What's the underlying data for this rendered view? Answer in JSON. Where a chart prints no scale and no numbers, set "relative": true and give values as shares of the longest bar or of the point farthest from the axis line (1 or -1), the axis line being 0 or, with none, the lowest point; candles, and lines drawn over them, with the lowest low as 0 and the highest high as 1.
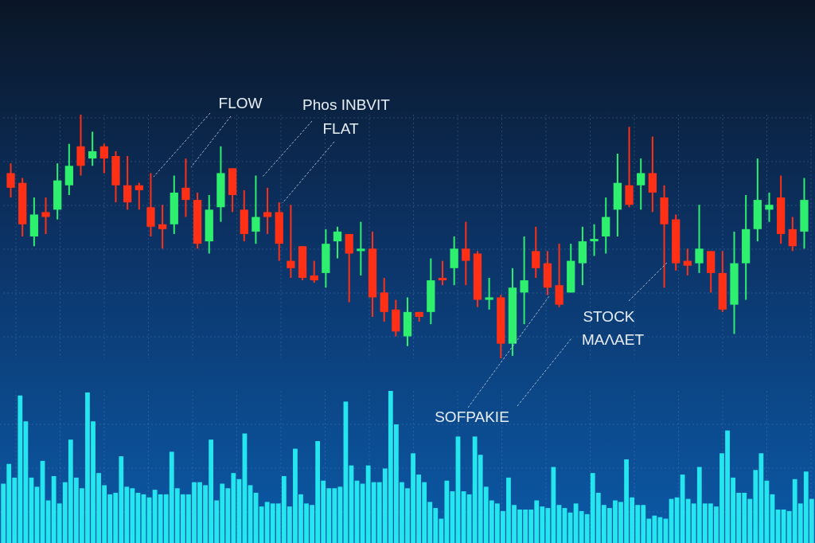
{
  "chart_data": [
    {
      "type": "candlestick",
      "relative": true,
      "grid": true,
      "categories": [
        null,
        null,
        null,
        null,
        null,
        null,
        null,
        null,
        null,
        null,
        null,
        null,
        null,
        null,
        null,
        null,
        null,
        null,
        null,
        null,
        null,
        null,
        null,
        null,
        null,
        null,
        null,
        null,
        null,
        null,
        null,
        null,
        null,
        null,
        null,
        null,
        null,
        null,
        null,
        null,
        null,
        null,
        null,
        null,
        null,
        null,
        null,
        null,
        null,
        null,
        null,
        null,
        null,
        null,
        null,
        null,
        null,
        null,
        null,
        null,
        null,
        null,
        null,
        null,
        null,
        null,
        null,
        null,
        null
      ],
      "ohlc": [
        [
          0.76,
          0.8,
          0.66,
          0.7
        ],
        [
          0.72,
          0.74,
          0.5,
          0.55
        ],
        [
          0.5,
          0.66,
          0.46,
          0.59
        ],
        [
          0.6,
          0.66,
          0.51,
          0.58
        ],
        [
          0.61,
          0.8,
          0.57,
          0.73
        ],
        [
          0.71,
          0.88,
          0.67,
          0.79
        ],
        [
          0.87,
          1.0,
          0.75,
          0.79
        ],
        [
          0.82,
          0.93,
          0.79,
          0.85
        ],
        [
          0.87,
          0.88,
          0.76,
          0.82
        ],
        [
          0.83,
          0.85,
          0.64,
          0.71
        ],
        [
          0.71,
          0.83,
          0.61,
          0.64
        ],
        [
          0.71,
          0.72,
          0.61,
          0.69
        ],
        [
          0.62,
          0.76,
          0.5,
          0.54
        ],
        [
          0.55,
          0.63,
          0.45,
          0.53
        ],
        [
          0.55,
          0.75,
          0.51,
          0.68
        ],
        [
          0.7,
          0.82,
          0.58,
          0.65
        ],
        [
          0.65,
          0.68,
          0.45,
          0.47
        ],
        [
          0.48,
          0.67,
          0.43,
          0.61
        ],
        [
          0.62,
          0.87,
          0.56,
          0.76
        ],
        [
          0.78,
          0.78,
          0.6,
          0.67
        ],
        [
          0.61,
          0.69,
          0.48,
          0.51
        ],
        [
          0.52,
          0.75,
          0.47,
          0.58
        ],
        [
          0.6,
          0.7,
          0.51,
          0.58
        ],
        [
          0.6,
          0.64,
          0.4,
          0.47
        ],
        [
          0.4,
          0.63,
          0.33,
          0.37
        ],
        [
          0.46,
          0.46,
          0.32,
          0.33
        ],
        [
          0.34,
          0.4,
          0.31,
          0.32
        ],
        [
          0.35,
          0.53,
          0.29,
          0.47
        ],
        [
          0.48,
          0.54,
          0.41,
          0.52
        ],
        [
          0.51,
          0.51,
          0.23,
          0.43
        ],
        [
          0.44,
          0.56,
          0.34,
          0.45
        ],
        [
          0.45,
          0.52,
          0.17,
          0.25
        ],
        [
          0.27,
          0.33,
          0.15,
          0.19
        ],
        [
          0.2,
          0.24,
          0.09,
          0.11
        ],
        [
          0.09,
          0.25,
          0.05,
          0.19
        ],
        [
          0.19,
          0.19,
          0.15,
          0.17
        ],
        [
          0.19,
          0.41,
          0.14,
          0.32
        ],
        [
          0.33,
          0.4,
          0.3,
          0.32
        ],
        [
          0.37,
          0.5,
          0.3,
          0.45
        ],
        [
          0.45,
          0.56,
          0.3,
          0.4
        ],
        [
          0.43,
          0.44,
          0.21,
          0.24
        ],
        [
          0.24,
          0.33,
          0.2,
          0.25
        ],
        [
          0.25,
          0.26,
          0.0,
          0.06
        ],
        [
          0.06,
          0.37,
          0.01,
          0.29
        ],
        [
          0.27,
          0.5,
          0.14,
          0.32
        ],
        [
          0.44,
          0.54,
          0.33,
          0.37
        ],
        [
          0.39,
          0.44,
          0.26,
          0.29
        ],
        [
          0.3,
          0.47,
          0.21,
          0.22
        ],
        [
          0.27,
          0.47,
          0.27,
          0.4
        ],
        [
          0.39,
          0.54,
          0.3,
          0.48
        ],
        [
          0.48,
          0.55,
          0.42,
          0.49
        ],
        [
          0.5,
          0.66,
          0.43,
          0.58
        ],
        [
          0.61,
          0.84,
          0.5,
          0.72
        ],
        [
          0.71,
          0.95,
          0.62,
          0.63
        ],
        [
          0.71,
          0.82,
          0.61,
          0.76
        ],
        [
          0.76,
          0.91,
          0.6,
          0.68
        ],
        [
          0.66,
          0.71,
          0.29,
          0.55
        ],
        [
          0.57,
          0.59,
          0.36,
          0.39
        ],
        [
          0.4,
          0.45,
          0.34,
          0.38
        ],
        [
          0.39,
          0.63,
          0.35,
          0.45
        ],
        [
          0.44,
          0.44,
          0.27,
          0.35
        ],
        [
          0.35,
          0.44,
          0.19,
          0.2
        ],
        [
          0.22,
          0.52,
          0.1,
          0.39
        ],
        [
          0.39,
          0.67,
          0.24,
          0.53
        ],
        [
          0.53,
          0.82,
          0.48,
          0.65
        ],
        [
          0.61,
          0.68,
          0.56,
          0.63
        ],
        [
          0.66,
          0.75,
          0.47,
          0.51
        ],
        [
          0.53,
          0.58,
          0.44,
          0.46
        ],
        [
          0.52,
          0.74,
          0.45,
          0.65
        ]
      ],
      "colors": [
        "#ff3015",
        "#ff3015",
        "#2ef06e",
        "#ff3015",
        "#2ef06e",
        "#2ef06e",
        "#ff3015",
        "#2ef06e",
        "#ff3015",
        "#ff3015",
        "#ff3015",
        "#ff3015",
        "#ff3015",
        "#ff3015",
        "#2ef06e",
        "#ff3015",
        "#ff3015",
        "#2ef06e",
        "#2ef06e",
        "#ff3015",
        "#ff3015",
        "#2ef06e",
        "#ff3015",
        "#ff3015",
        "#ff3015",
        "#ff3015",
        "#ff3015",
        "#2ef06e",
        "#2ef06e",
        "#ff3015",
        "#2ef06e",
        "#ff3015",
        "#ff3015",
        "#ff3015",
        "#2ef06e",
        "#ff3015",
        "#2ef06e",
        "#ff3015",
        "#2ef06e",
        "#ff3015",
        "#ff3015",
        "#2ef06e",
        "#ff3015",
        "#2ef06e",
        "#2ef06e",
        "#ff3015",
        "#ff3015",
        "#ff3015",
        "#2ef06e",
        "#2ef06e",
        "#2ef06e",
        "#2ef06e",
        "#2ef06e",
        "#ff3015",
        "#2ef06e",
        "#ff3015",
        "#ff3015",
        "#ff3015",
        "#ff3015",
        "#2ef06e",
        "#ff3015",
        "#ff3015",
        "#2ef06e",
        "#2ef06e",
        "#2ef06e",
        "#2ef06e",
        "#ff3015",
        "#ff3015",
        "#2ef06e"
      ],
      "annotations": [
        "FLOW",
        "Phos INBVIT",
        "FLAT",
        "STOCK",
        "MAΛAET",
        "SOFPAKIE"
      ]
    },
    {
      "type": "bar",
      "relative": true,
      "grid": true,
      "color": "#25e6ee",
      "categories": [
        null,
        null,
        null,
        null,
        null,
        null,
        null,
        null,
        null,
        null,
        null,
        null,
        null,
        null,
        null,
        null,
        null,
        null,
        null,
        null,
        null,
        null,
        null,
        null,
        null,
        null,
        null,
        null,
        null,
        null,
        null,
        null,
        null,
        null,
        null,
        null,
        null,
        null,
        null,
        null,
        null,
        null,
        null,
        null,
        null,
        null,
        null,
        null,
        null,
        null,
        null,
        null,
        null,
        null,
        null,
        null,
        null,
        null,
        null,
        null,
        null,
        null,
        null,
        null,
        null,
        null,
        null,
        null,
        null,
        null,
        null,
        null,
        null,
        null,
        null,
        null,
        null,
        null,
        null,
        null,
        null,
        null,
        null,
        null,
        null,
        null,
        null,
        null,
        null,
        null,
        null,
        null,
        null,
        null,
        null,
        null,
        null,
        null,
        null,
        null,
        null,
        null,
        null,
        null,
        null,
        null,
        null,
        null,
        null,
        null,
        null,
        null,
        null,
        null,
        null,
        null,
        null,
        null,
        null,
        null,
        null,
        null,
        null,
        null,
        null,
        null,
        null,
        null,
        null,
        null,
        null,
        null,
        null,
        null,
        null,
        null,
        null,
        null,
        null,
        null,
        null,
        null,
        null,
        null,
        null
      ],
      "values": [
        0.39,
        0.52,
        0.43,
        0.97,
        0.8,
        0.43,
        0.37,
        0.54,
        0.28,
        0.44,
        0.26,
        0.4,
        0.68,
        0.43,
        0.36,
        0.99,
        0.8,
        0.46,
        0.38,
        0.32,
        0.33,
        0.57,
        0.37,
        0.36,
        0.33,
        0.32,
        0.3,
        0.35,
        0.32,
        0.32,
        0.6,
        0.36,
        0.32,
        0.32,
        0.4,
        0.4,
        0.38,
        0.68,
        0.28,
        0.39,
        0.36,
        0.46,
        0.42,
        0.72,
        0.38,
        0.33,
        0.24,
        0.27,
        0.26,
        0.26,
        0.44,
        0.24,
        0.62,
        0.32,
        0.26,
        0.25,
        0.67,
        0.41,
        0.36,
        0.36,
        0.37,
        0.93,
        0.51,
        0.41,
        0.39,
        0.51,
        0.4,
        0.4,
        0.49,
        1.0,
        0.78,
        0.4,
        0.36,
        0.59,
        0.45,
        0.4,
        0.27,
        0.23,
        0.16,
        0.41,
        0.34,
        0.7,
        0.34,
        0.32,
        0.7,
        0.58,
        0.37,
        0.28,
        0.26,
        0.21,
        0.43,
        0.25,
        0.22,
        0.22,
        0.22,
        0.28,
        0.24,
        0.23,
        0.5,
        0.25,
        0.23,
        0.2,
        0.26,
        0.21,
        0.19,
        0.46,
        0.33,
        0.25,
        0.23,
        0.28,
        0.27,
        0.55,
        0.3,
        0.25,
        0.25,
        0.16,
        0.18,
        0.17,
        0.16,
        0.29,
        0.3,
        0.45,
        0.29,
        0.26,
        0.5,
        0.26,
        0.26,
        0.24,
        0.59,
        0.74,
        0.43,
        0.33,
        0.33,
        0.29,
        0.48,
        0.59,
        0.41,
        0.32,
        0.22,
        0.22,
        0.21,
        0.42,
        0.26,
        0.47,
        0.29
      ]
    }
  ]
}
